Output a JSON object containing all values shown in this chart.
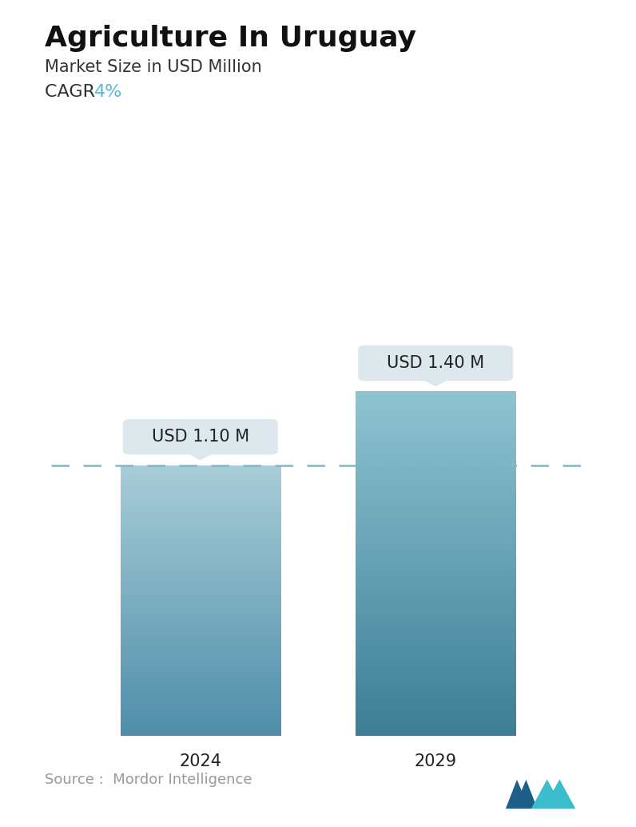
{
  "title": "Agriculture In Uruguay",
  "subtitle": "Market Size in USD Million",
  "cagr_label": "CAGR ",
  "cagr_value": "4%",
  "cagr_color": "#5bb8d4",
  "categories": [
    "2024",
    "2029"
  ],
  "values": [
    1.1,
    1.4
  ],
  "bar_labels": [
    "USD 1.10 M",
    "USD 1.40 M"
  ],
  "dashed_line_color": "#7ab8cc",
  "dashed_line_value": 1.1,
  "source_text": "Source :  Mordor Intelligence",
  "source_color": "#999999",
  "background_color": "#ffffff",
  "bar1_color_top": "#a8cdd8",
  "bar1_color_bottom": "#4f8eaa",
  "bar2_color_top": "#8fc4d2",
  "bar2_color_bottom": "#3d7e96",
  "title_fontsize": 26,
  "subtitle_fontsize": 15,
  "cagr_fontsize": 16,
  "label_fontsize": 15,
  "tick_fontsize": 15,
  "source_fontsize": 13,
  "ylim": [
    0,
    1.75
  ],
  "callout_bg": "#dde8ed",
  "callout_text_color": "#222222",
  "logo_left_color": "#1e5f8a",
  "logo_right_color": "#3bbdcc"
}
